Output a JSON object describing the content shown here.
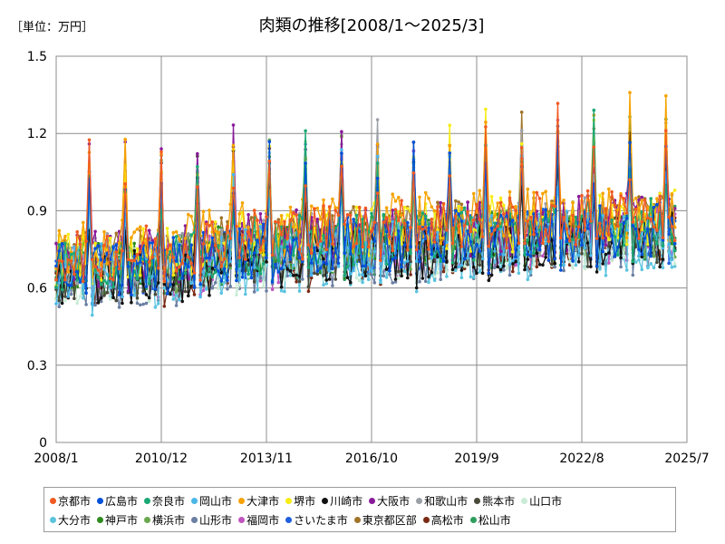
{
  "unit_label": "［単位：万円］",
  "chart_data": {
    "type": "line",
    "title": "肉類の推移[2008/1～2025/3]",
    "x_tick_labels": [
      "2008/1",
      "2010/12",
      "2013/11",
      "2016/10",
      "2019/9",
      "2022/8",
      "2025/7"
    ],
    "y_tick_labels": [
      "0",
      "0.3",
      "0.6",
      "0.9",
      "1.2",
      "1.5"
    ],
    "ylim": [
      0,
      1.5
    ],
    "x_start": "2008/1",
    "x_end": "2025/7",
    "data_end": "2025/3",
    "grid": true,
    "legend_position": "bottom",
    "approximate_series_ranges": {
      "2008–2012": [
        0.5,
        0.9
      ],
      "2013–2018": [
        0.6,
        1.0
      ],
      "2019–2025": [
        0.65,
        1.05
      ],
      "december_peaks": [
        1.0,
        1.38
      ]
    },
    "series": [
      {
        "name": "京都市",
        "color": "#f15a22",
        "base": 0.78
      },
      {
        "name": "広島市",
        "color": "#0050d8",
        "base": 0.72
      },
      {
        "name": "奈良市",
        "color": "#1aa874",
        "base": 0.74
      },
      {
        "name": "岡山市",
        "color": "#4bb7e8",
        "base": 0.71
      },
      {
        "name": "大津市",
        "color": "#f5a300",
        "base": 0.8
      },
      {
        "name": "堺市",
        "color": "#f7ec13",
        "base": 0.77
      },
      {
        "name": "川崎市",
        "color": "#111111",
        "base": 0.68
      },
      {
        "name": "大阪市",
        "color": "#8a1a9b",
        "base": 0.76
      },
      {
        "name": "和歌山市",
        "color": "#9aa0a6",
        "base": 0.75
      },
      {
        "name": "熊本市",
        "color": "#4a4a3a",
        "base": 0.7
      },
      {
        "name": "山口市",
        "color": "#c9ecd6",
        "base": 0.69
      },
      {
        "name": "大分市",
        "color": "#5bc4df",
        "base": 0.66
      },
      {
        "name": "神戸市",
        "color": "#2e8b1e",
        "base": 0.73
      },
      {
        "name": "横浜市",
        "color": "#6aa84f",
        "base": 0.72
      },
      {
        "name": "山形市",
        "color": "#6b7fa3",
        "base": 0.67
      },
      {
        "name": "福岡市",
        "color": "#c054c0",
        "base": 0.7
      },
      {
        "name": "さいたま市",
        "color": "#1f5fe0",
        "base": 0.72
      },
      {
        "name": "東京都区部",
        "color": "#a0742a",
        "base": 0.76
      },
      {
        "name": "高松市",
        "color": "#7a2a14",
        "base": 0.69
      },
      {
        "name": "松山市",
        "color": "#2e9e5e",
        "base": 0.71
      }
    ]
  }
}
